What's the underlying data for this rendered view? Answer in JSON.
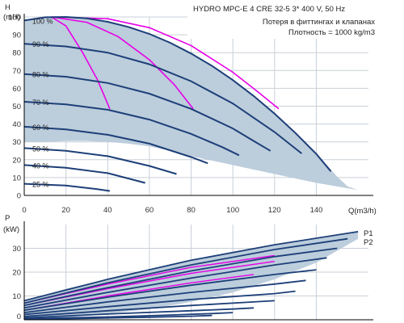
{
  "info_title": "HYDRO MPC-E 4 CRE 32-5    3* 400 V, 50 Hz",
  "info_note1": "Потеря в фиттингах и клапанах",
  "info_note2": "Плотность = 1000 kg/m3",
  "colors": {
    "envelope_fill": "#bccddc",
    "grid": "#c9d0d8",
    "speed_curve": "#1d3f78",
    "efficiency_curve": "#e600e6",
    "axis": "#000000"
  },
  "chart_data": [
    {
      "type": "line",
      "name": "head",
      "ylabel": "H",
      "yunit": "(mH)",
      "xlabel": "Q(m3/h)",
      "xlim": [
        0,
        165
      ],
      "ylim": [
        0,
        100
      ],
      "xticks": [
        0,
        20,
        40,
        60,
        80,
        100,
        120,
        140
      ],
      "yticks": [
        0,
        10,
        20,
        30,
        40,
        50,
        60,
        70,
        80,
        90,
        100
      ],
      "grid": true,
      "envelope": {
        "x": [
          0,
          5,
          10,
          15,
          20,
          25,
          30,
          35,
          40,
          45,
          50,
          55,
          60,
          65,
          70,
          75,
          80,
          85,
          90,
          95,
          100,
          105,
          110,
          115,
          120,
          125,
          130,
          135,
          140,
          145,
          150,
          155,
          160,
          160,
          150,
          140,
          130,
          120,
          110,
          100,
          90,
          80,
          70,
          60,
          50,
          40,
          30,
          20,
          10,
          0
        ],
        "y": [
          98.0,
          99.1,
          99.8,
          100.0,
          100.0,
          99.7,
          99.2,
          98.4,
          97.3,
          96.0,
          94.4,
          92.6,
          90.5,
          88.1,
          85.5,
          82.6,
          79.5,
          76.2,
          72.6,
          68.7,
          64.6,
          60.3,
          55.7,
          50.9,
          45.8,
          40.5,
          35.0,
          29.2,
          23.2,
          17.0,
          10.5,
          5.0,
          3.0,
          3.0,
          5.0,
          7.0,
          9.5,
          12.0,
          14.5,
          17.0,
          19.5,
          22.0,
          25.0,
          27.5,
          29.0,
          30.0,
          30.5,
          30.5,
          30.0,
          30.0
        ]
      },
      "speed_curves": [
        {
          "label": "100 %",
          "x": [
            0,
            10,
            20,
            30,
            40,
            50,
            60,
            70,
            80,
            90,
            100,
            110,
            120,
            130,
            140,
            147
          ],
          "y": [
            98.0,
            99.8,
            100.0,
            99.2,
            97.3,
            94.4,
            90.5,
            85.5,
            79.5,
            72.6,
            64.6,
            55.7,
            45.8,
            35.0,
            23.2,
            13.5
          ]
        },
        {
          "label": "90 %",
          "x": [
            0,
            20,
            40,
            60,
            80,
            100,
            120,
            133
          ],
          "y": [
            85.0,
            83.5,
            80.0,
            73.5,
            64.0,
            51.5,
            35.5,
            23.5
          ]
        },
        {
          "label": "80 %",
          "x": [
            0,
            20,
            40,
            60,
            80,
            100,
            110,
            118
          ],
          "y": [
            68.0,
            66.5,
            63.0,
            57.0,
            48.5,
            37.5,
            30.5,
            25.0
          ]
        },
        {
          "label": "70 %",
          "x": [
            0,
            20,
            40,
            60,
            80,
            95,
            103
          ],
          "y": [
            52.5,
            51.0,
            48.0,
            42.5,
            34.5,
            27.0,
            22.5
          ]
        },
        {
          "label": "60 %",
          "x": [
            0,
            20,
            40,
            60,
            80,
            88
          ],
          "y": [
            38.5,
            37.0,
            34.0,
            29.0,
            21.5,
            18.0
          ]
        },
        {
          "label": "50 %",
          "x": [
            0,
            20,
            40,
            60,
            73
          ],
          "y": [
            26.5,
            25.0,
            22.0,
            16.5,
            12.0
          ]
        },
        {
          "label": "40 %",
          "x": [
            0,
            20,
            40,
            58
          ],
          "y": [
            17.0,
            15.5,
            12.5,
            7.0
          ]
        },
        {
          "label": "25 %",
          "x": [
            0,
            20,
            35,
            41
          ],
          "y": [
            6.5,
            5.5,
            3.5,
            2.5
          ]
        }
      ],
      "efficiency_curves": [
        {
          "x": [
            13,
            20,
            28,
            35,
            41
          ],
          "y": [
            100,
            95,
            80,
            65,
            48.5
          ]
        },
        {
          "x": [
            13,
            30,
            45,
            60,
            72,
            81
          ],
          "y": [
            100,
            97,
            89,
            76,
            62,
            48.5
          ]
        },
        {
          "x": [
            13,
            40,
            60,
            80,
            100,
            112,
            122
          ],
          "y": [
            100,
            99,
            94,
            84,
            69,
            58,
            48.5
          ]
        }
      ]
    },
    {
      "type": "line",
      "name": "power",
      "ylabel": "P",
      "yunit": "(kW)",
      "xlim": [
        0,
        165
      ],
      "ylim": [
        0,
        40
      ],
      "yticks": [
        0,
        10,
        20,
        30
      ],
      "grid": true,
      "series_labels": [
        "P1",
        "P2"
      ],
      "envelope": {
        "x": [
          0,
          20,
          40,
          60,
          80,
          100,
          120,
          140,
          160,
          160,
          140,
          120,
          100,
          80,
          60,
          40,
          20,
          0
        ],
        "y": [
          8.0,
          13.0,
          17.0,
          21.0,
          25.0,
          28.5,
          31.5,
          34.5,
          37.0,
          34.0,
          24.0,
          17.0,
          11.5,
          7.5,
          4.5,
          2.5,
          1.0,
          0.3
        ]
      },
      "curves": [
        {
          "x": [
            0,
            40,
            80,
            120,
            160
          ],
          "y": [
            8.0,
            17.0,
            25.0,
            31.5,
            37.0
          ]
        },
        {
          "x": [
            0,
            40,
            80,
            120,
            155
          ],
          "y": [
            7.0,
            15.5,
            23.0,
            29.5,
            34.0
          ]
        },
        {
          "x": [
            0,
            40,
            80,
            120,
            150
          ],
          "y": [
            6.0,
            13.5,
            20.5,
            26.5,
            30.0
          ]
        },
        {
          "x": [
            0,
            40,
            80,
            120,
            145
          ],
          "y": [
            5.0,
            11.5,
            17.5,
            23.0,
            26.0
          ]
        },
        {
          "x": [
            0,
            40,
            80,
            120,
            140
          ],
          "y": [
            4.0,
            9.5,
            14.5,
            19.0,
            21.0
          ]
        },
        {
          "x": [
            0,
            40,
            80,
            120,
            135
          ],
          "y": [
            3.0,
            7.5,
            11.5,
            15.0,
            16.5
          ]
        },
        {
          "x": [
            0,
            40,
            80,
            120,
            130
          ],
          "y": [
            2.2,
            5.5,
            8.5,
            11.0,
            12.0
          ]
        },
        {
          "x": [
            0,
            40,
            80,
            110,
            120
          ],
          "y": [
            1.4,
            3.8,
            6.0,
            7.5,
            8.0
          ]
        },
        {
          "x": [
            0,
            40,
            80,
            100,
            110
          ],
          "y": [
            0.8,
            2.4,
            3.8,
            4.5,
            5.0
          ]
        },
        {
          "x": [
            0,
            40,
            70,
            90,
            100
          ],
          "y": [
            0.4,
            1.2,
            2.0,
            2.6,
            3.0
          ]
        },
        {
          "x": [
            0,
            30,
            60,
            80,
            90
          ],
          "y": [
            0.2,
            0.6,
            1.1,
            1.5,
            1.8
          ]
        }
      ],
      "efficiency_curves": [
        {
          "x": [
            0,
            40,
            80,
            110
          ],
          "y": [
            4.0,
            10.0,
            15.5,
            19.0
          ]
        },
        {
          "x": [
            0,
            40,
            80,
            120
          ],
          "y": [
            6.0,
            13.0,
            19.5,
            24.5
          ]
        },
        {
          "x": [
            0,
            40,
            80,
            120
          ],
          "y": [
            7.0,
            15.0,
            22.0,
            27.0
          ]
        }
      ]
    }
  ]
}
